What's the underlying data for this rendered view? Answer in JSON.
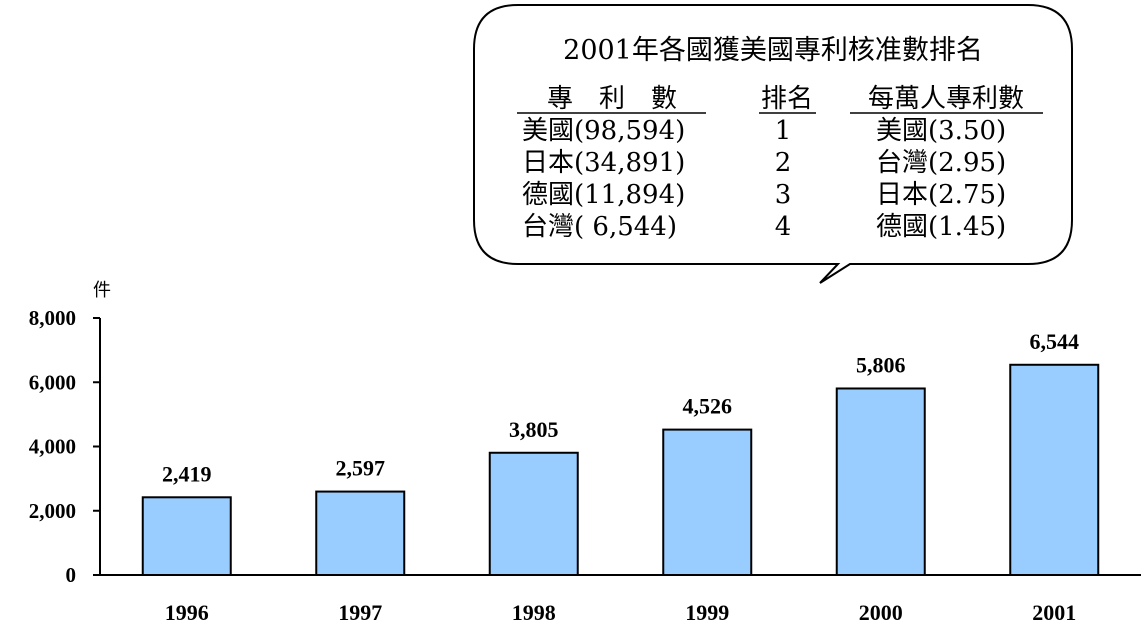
{
  "chart_data": {
    "type": "bar",
    "unit_label": "件",
    "categories": [
      "1996",
      "1997",
      "1998",
      "1999",
      "2000",
      "2001"
    ],
    "values": [
      2419,
      2597,
      3805,
      4526,
      5806,
      6544
    ],
    "value_labels": [
      "2,419",
      "2,597",
      "3,805",
      "4,526",
      "5,806",
      "6,544"
    ],
    "yticks": [
      0,
      2000,
      4000,
      6000,
      8000
    ],
    "ytick_labels": [
      "0",
      "2,000",
      "4,000",
      "6,000",
      "8,000"
    ],
    "ylim": [
      0,
      8000
    ],
    "grid": false,
    "bar_color": "#99ccff",
    "bar_edge_color": "#000000"
  },
  "callout": {
    "title": "2001年各國獲美國專利核准數排名",
    "headers": {
      "patents": "專　利　數",
      "rank": "排名",
      "per_capita": "每萬人專利數"
    },
    "rows": [
      {
        "patents": "美國(98,594)",
        "rank": "1",
        "per_capita": "美國(3.50)"
      },
      {
        "patents": "日本(34,891)",
        "rank": "2",
        "per_capita": "台灣(2.95)"
      },
      {
        "patents": "德國(11,894)",
        "rank": "3",
        "per_capita": "日本(2.75)"
      },
      {
        "patents": "台灣( 6,544)",
        "rank": "4",
        "per_capita": "德國(1.45)"
      }
    ]
  }
}
